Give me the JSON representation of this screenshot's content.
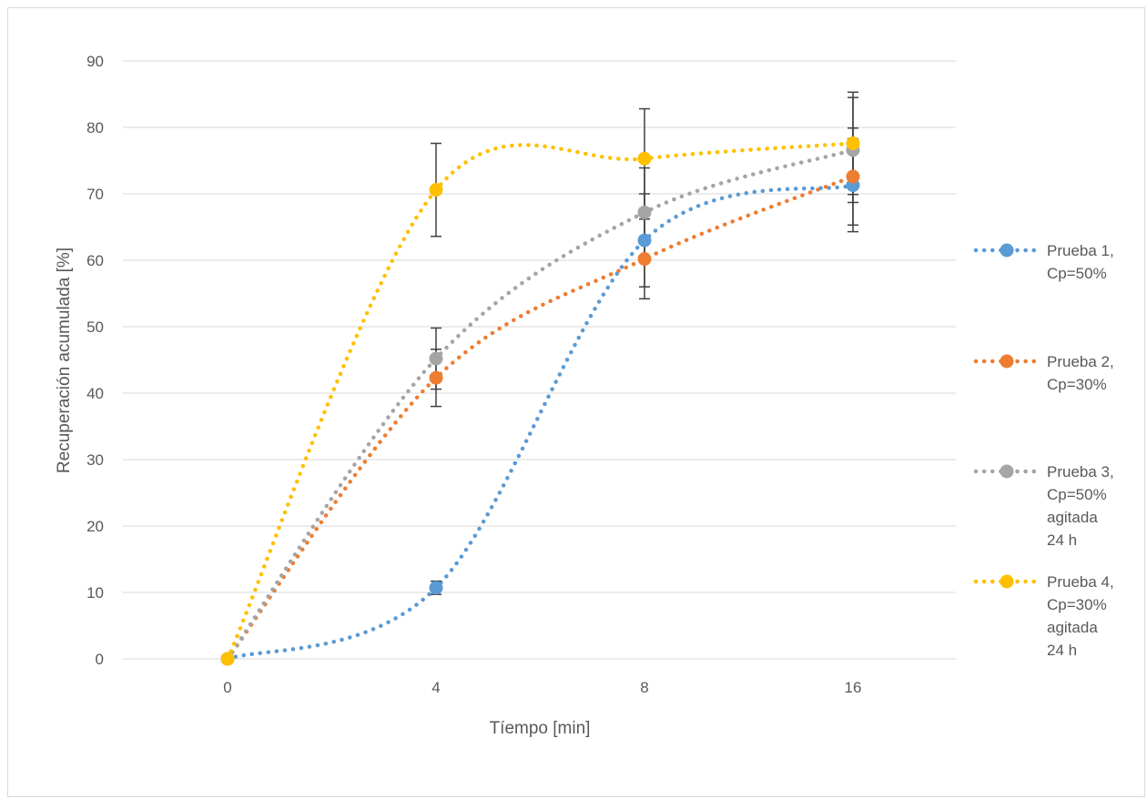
{
  "chart_data": {
    "type": "line",
    "xlabel": "Tíempo [min]",
    "ylabel": "Recuperación acumulada [%]",
    "categories": [
      "0",
      "4",
      "8",
      "16"
    ],
    "ylim": [
      0,
      90
    ],
    "yticks": [
      "0",
      "10",
      "20",
      "30",
      "40",
      "50",
      "60",
      "70",
      "80",
      "90"
    ],
    "grid": true,
    "legend_position": "right",
    "series": [
      {
        "name_lines": [
          "Prueba 1,",
          "Cp=50%"
        ],
        "color": "#5b9bd5",
        "values": [
          0,
          10.7,
          63.0,
          71.3
        ],
        "error": [
          0,
          1.0,
          7.0,
          7.0
        ]
      },
      {
        "name_lines": [
          "Prueba 2,",
          "Cp=30%"
        ],
        "color": "#ed7d31",
        "values": [
          0,
          42.3,
          60.2,
          72.6
        ],
        "error": [
          0,
          4.3,
          6.0,
          7.3
        ]
      },
      {
        "name_lines": [
          "Prueba 3,",
          "Cp=50%",
          "agitada",
          "24 h"
        ],
        "color": "#a5a5a5",
        "values": [
          0,
          45.2,
          67.2,
          76.6
        ],
        "error": [
          0,
          4.6,
          6.7,
          7.9
        ]
      },
      {
        "name_lines": [
          "Prueba 4,",
          "Cp=30%",
          "agitada",
          "24 h"
        ],
        "color": "#ffc000",
        "values": [
          0,
          70.6,
          75.3,
          77.6
        ],
        "error": [
          0,
          7.0,
          7.5,
          7.7
        ]
      }
    ]
  }
}
